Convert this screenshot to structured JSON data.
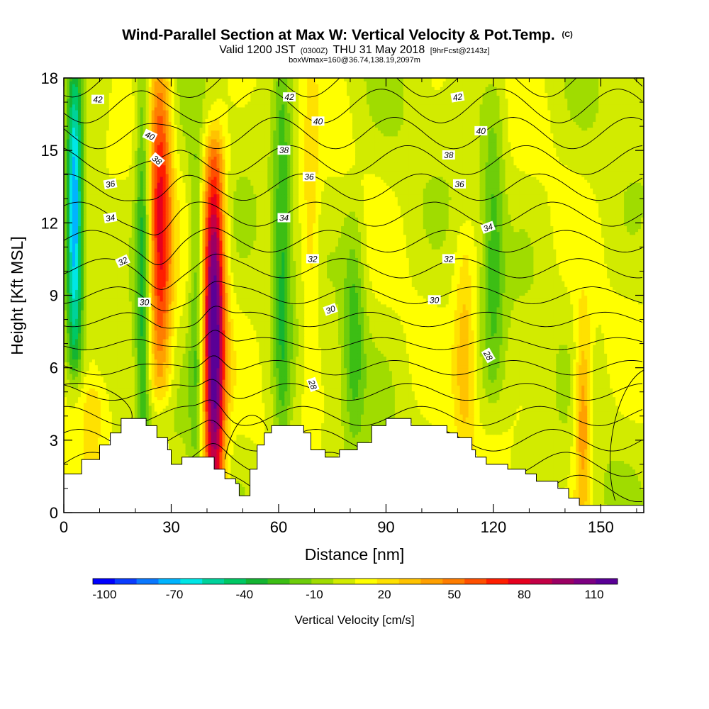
{
  "header": {
    "title": "Wind-Parallel Section at Max W: Vertical Velocity & Pot.Temp.",
    "title_mark": "(C)",
    "valid_prefix": "Valid 1200 JST",
    "valid_utc": "(0300Z)",
    "valid_date": "THU 31 May 2018",
    "forecast": "[9hrFcst@2143z]",
    "box_info": "boxWmax=160@36.74,138.19,2097m"
  },
  "chart_data": {
    "type": "heatmap",
    "xlabel": "Distance [nm]",
    "ylabel": "Height [Kft MSL]",
    "xlim": [
      0,
      162
    ],
    "ylim": [
      0,
      18
    ],
    "x_ticks": [
      0,
      30,
      60,
      90,
      120,
      150
    ],
    "y_ticks": [
      0,
      3,
      6,
      9,
      12,
      15,
      18
    ],
    "colorbar": {
      "title": "Vertical Velocity [cm/s]",
      "labels": [
        "-100",
        "-70",
        "-40",
        "-10",
        "20",
        "50",
        "80",
        "110"
      ],
      "label_values": [
        -100,
        -70,
        -40,
        -10,
        20,
        50,
        80,
        110
      ],
      "range": [
        -105,
        120
      ],
      "colors": [
        "#0000ff",
        "#0a3cff",
        "#0a78ff",
        "#00b4ff",
        "#00e6e6",
        "#00d29b",
        "#00c864",
        "#14b432",
        "#3cbe14",
        "#6ecd0a",
        "#a0dc00",
        "#d2eb00",
        "#ffff00",
        "#ffe100",
        "#ffc300",
        "#ffa000",
        "#ff7d00",
        "#ff5000",
        "#ff1e00",
        "#e6001e",
        "#c30046",
        "#9b0064",
        "#7d0082",
        "#5a0096"
      ]
    },
    "terrain": [
      [
        0,
        1.6
      ],
      [
        5,
        1.6
      ],
      [
        5,
        2.2
      ],
      [
        10,
        2.2
      ],
      [
        10,
        2.8
      ],
      [
        13,
        2.8
      ],
      [
        13,
        3.3
      ],
      [
        16,
        3.3
      ],
      [
        16,
        3.9
      ],
      [
        23,
        3.9
      ],
      [
        23,
        3.6
      ],
      [
        26,
        3.6
      ],
      [
        26,
        3.1
      ],
      [
        29,
        3.1
      ],
      [
        29,
        2.6
      ],
      [
        30,
        2.6
      ],
      [
        30,
        2.0
      ],
      [
        33,
        2.0
      ],
      [
        33,
        2.3
      ],
      [
        42,
        2.3
      ],
      [
        42,
        1.8
      ],
      [
        45,
        1.8
      ],
      [
        45,
        1.4
      ],
      [
        48,
        1.4
      ],
      [
        48,
        1.2
      ],
      [
        49,
        1.2
      ],
      [
        49,
        0.7
      ],
      [
        52,
        0.7
      ],
      [
        52,
        1.8
      ],
      [
        54,
        1.8
      ],
      [
        54,
        2.8
      ],
      [
        56,
        2.8
      ],
      [
        56,
        3.3
      ],
      [
        58,
        3.3
      ],
      [
        58,
        3.6
      ],
      [
        67,
        3.6
      ],
      [
        67,
        3.3
      ],
      [
        69,
        3.3
      ],
      [
        69,
        2.6
      ],
      [
        73,
        2.6
      ],
      [
        73,
        2.3
      ],
      [
        77,
        2.3
      ],
      [
        77,
        2.6
      ],
      [
        82,
        2.6
      ],
      [
        82,
        2.9
      ],
      [
        86,
        2.9
      ],
      [
        86,
        3.6
      ],
      [
        90,
        3.6
      ],
      [
        90,
        3.9
      ],
      [
        97,
        3.9
      ],
      [
        97,
        3.6
      ],
      [
        107,
        3.6
      ],
      [
        107,
        3.3
      ],
      [
        110,
        3.3
      ],
      [
        110,
        3.1
      ],
      [
        114,
        3.1
      ],
      [
        114,
        2.6
      ],
      [
        115,
        2.6
      ],
      [
        115,
        2.3
      ],
      [
        118,
        2.3
      ],
      [
        118,
        2.0
      ],
      [
        124,
        2.0
      ],
      [
        124,
        1.8
      ],
      [
        129,
        1.8
      ],
      [
        129,
        1.6
      ],
      [
        132,
        1.6
      ],
      [
        132,
        1.3
      ],
      [
        138,
        1.3
      ],
      [
        138,
        1.0
      ],
      [
        141,
        1.0
      ],
      [
        141,
        0.6
      ],
      [
        144,
        0.6
      ],
      [
        144,
        0.3
      ],
      [
        162,
        0.3
      ]
    ],
    "updrafts": [
      {
        "x": 42,
        "w": 3.0,
        "z0": 0,
        "z1": 14,
        "amp": 115
      },
      {
        "x": 27,
        "w": 3.2,
        "z0": 6,
        "z1": 18,
        "amp": 70
      },
      {
        "x": 69,
        "w": 2.4,
        "z0": 4,
        "z1": 18,
        "amp": 18
      },
      {
        "x": 112,
        "w": 3.0,
        "z0": 3,
        "z1": 10,
        "amp": 28
      },
      {
        "x": 145,
        "w": 2.4,
        "z0": 1,
        "z1": 7,
        "amp": 45
      },
      {
        "x": 8,
        "w": 4.0,
        "z0": 3,
        "z1": 6,
        "amp": 20
      }
    ],
    "downdrafts": [
      {
        "x": 3,
        "w": 2.2,
        "z0": 7,
        "z1": 18,
        "amp": -78
      },
      {
        "x": 22,
        "w": 2.0,
        "z0": 2,
        "z1": 18,
        "amp": -40
      },
      {
        "x": 37,
        "w": 2.0,
        "z0": 3,
        "z1": 14,
        "amp": -30
      },
      {
        "x": 61,
        "w": 2.5,
        "z0": 3,
        "z1": 18,
        "amp": -35
      },
      {
        "x": 81,
        "w": 3.0,
        "z0": 4,
        "z1": 11,
        "amp": -30
      },
      {
        "x": 120,
        "w": 3.0,
        "z0": 6,
        "z1": 16,
        "amp": -28
      }
    ],
    "theta_levels": [
      26,
      27,
      28,
      29,
      30,
      31,
      32,
      33,
      34,
      35,
      36,
      37,
      38,
      39,
      40,
      41,
      42,
      43,
      44
    ],
    "theta_labels": [
      {
        "text": "42",
        "x": 9.5,
        "y": 17.1,
        "angle": 0
      },
      {
        "text": "42",
        "x": 63,
        "y": 17.2,
        "angle": 0
      },
      {
        "text": "42",
        "x": 110,
        "y": 17.2,
        "angle": 10
      },
      {
        "text": "40",
        "x": 24,
        "y": 15.6,
        "angle": -25
      },
      {
        "text": "40",
        "x": 71,
        "y": 16.2,
        "angle": 0
      },
      {
        "text": "40",
        "x": 116.5,
        "y": 15.8,
        "angle": 0
      },
      {
        "text": "38",
        "x": 26,
        "y": 14.6,
        "angle": -40
      },
      {
        "text": "38",
        "x": 61.5,
        "y": 15.0,
        "angle": 0
      },
      {
        "text": "38",
        "x": 107.5,
        "y": 14.8,
        "angle": 0
      },
      {
        "text": "36",
        "x": 13,
        "y": 13.6,
        "angle": 10
      },
      {
        "text": "36",
        "x": 68.5,
        "y": 13.9,
        "angle": 0
      },
      {
        "text": "36",
        "x": 110.5,
        "y": 13.6,
        "angle": 0
      },
      {
        "text": "34",
        "x": 13,
        "y": 12.2,
        "angle": 10
      },
      {
        "text": "34",
        "x": 61.5,
        "y": 12.2,
        "angle": 0
      },
      {
        "text": "34",
        "x": 118.5,
        "y": 11.8,
        "angle": 20
      },
      {
        "text": "32",
        "x": 16.5,
        "y": 10.4,
        "angle": 25
      },
      {
        "text": "32",
        "x": 69.5,
        "y": 10.5,
        "angle": 0
      },
      {
        "text": "32",
        "x": 107.5,
        "y": 10.5,
        "angle": 0
      },
      {
        "text": "30",
        "x": 22.5,
        "y": 8.7,
        "angle": 0
      },
      {
        "text": "30",
        "x": 74.5,
        "y": 8.4,
        "angle": 20
      },
      {
        "text": "30",
        "x": 103.5,
        "y": 8.8,
        "angle": 0
      },
      {
        "text": "28",
        "x": 69.5,
        "y": 5.3,
        "angle": -70
      },
      {
        "text": "28",
        "x": 118.5,
        "y": 6.5,
        "angle": -60
      }
    ]
  }
}
